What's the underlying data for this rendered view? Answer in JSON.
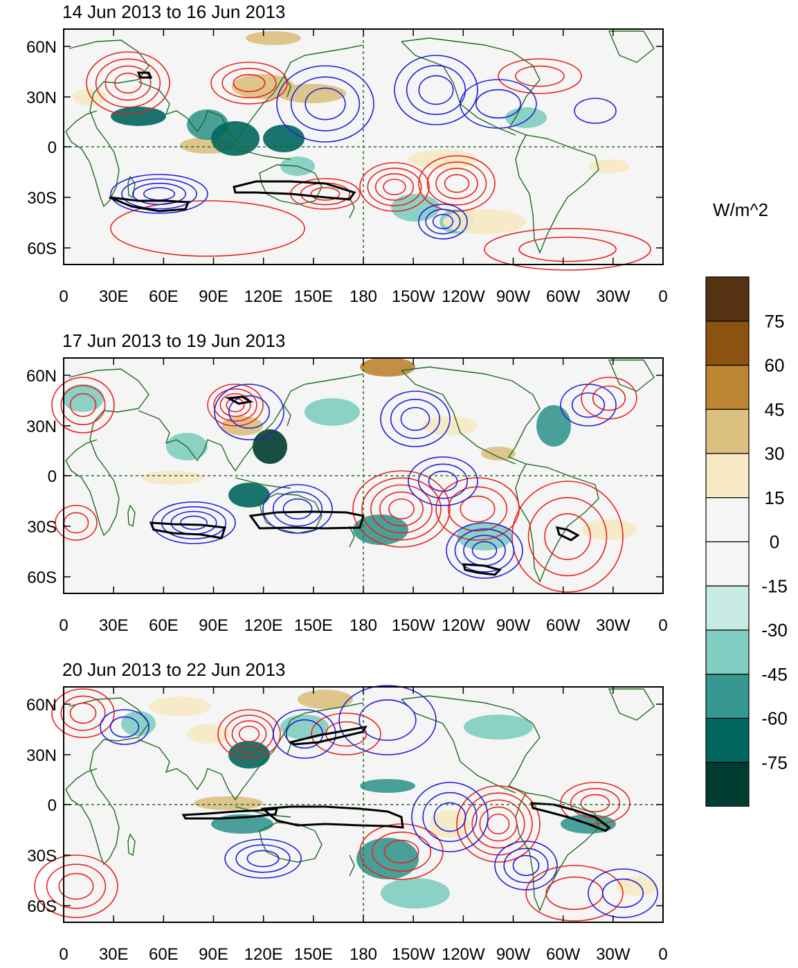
{
  "figure": {
    "units_label": "W/m^2",
    "colorbar": {
      "levels": [
        "75",
        "60",
        "45",
        "30",
        "15",
        "0",
        "-15",
        "-30",
        "-45",
        "-60",
        "-75"
      ],
      "colors": [
        "#553211",
        "#8c520f",
        "#bd8431",
        "#dcc081",
        "#f6e9c4",
        "#f5f5f5",
        "#f5f5f5",
        "#c8ebe4",
        "#80cdc1",
        "#35978f",
        "#01665e",
        "#003c30"
      ]
    },
    "x_ticks": [
      "0",
      "30E",
      "60E",
      "90E",
      "120E",
      "150E",
      "180",
      "150W",
      "120W",
      "90W",
      "60W",
      "30W",
      "0"
    ],
    "y_ticks": [
      "60N",
      "30N",
      "0",
      "30S",
      "60S"
    ],
    "colors": {
      "positive_contour": "#e8221c",
      "negative_contour": "#1f1fd8",
      "coast": "#1e6b1e",
      "outline": "#000000"
    }
  },
  "panels": [
    {
      "title": "14 Jun 2013 to 16 Jun 2013"
    },
    {
      "title": "17 Jun 2013 to 19 Jun 2013"
    },
    {
      "title": "20 Jun 2013 to 22 Jun 2013"
    }
  ]
}
